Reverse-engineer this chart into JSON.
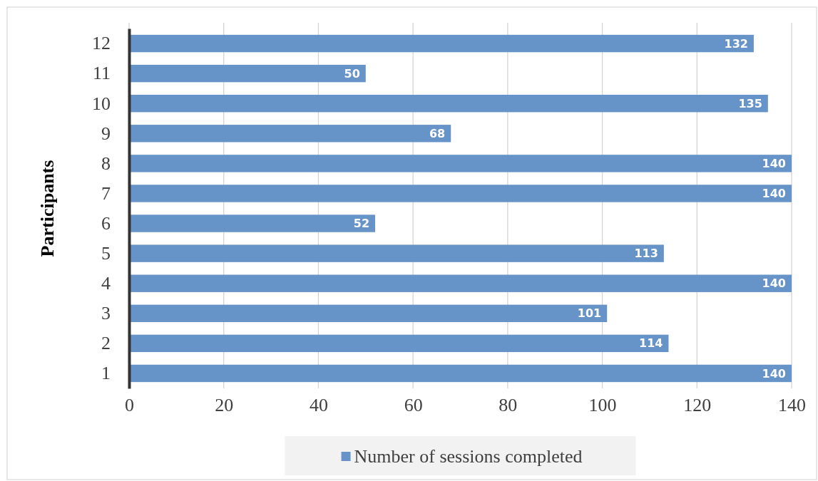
{
  "chart_data": {
    "type": "bar",
    "orientation": "horizontal",
    "ylabel": "Participants",
    "categories": [
      "12",
      "11",
      "10",
      "9",
      "8",
      "7",
      "6",
      "5",
      "4",
      "3",
      "2",
      "1"
    ],
    "series": [
      {
        "name": "Number of sessions completed",
        "color": "#6794c8",
        "values": [
          132,
          50,
          135,
          68,
          140,
          140,
          52,
          113,
          140,
          101,
          114,
          140
        ]
      }
    ],
    "xlim": [
      0,
      140
    ],
    "xticks": [
      0,
      20,
      40,
      60,
      80,
      100,
      120,
      140
    ],
    "grid": "x",
    "legend": "bottom",
    "data_labels": true
  }
}
